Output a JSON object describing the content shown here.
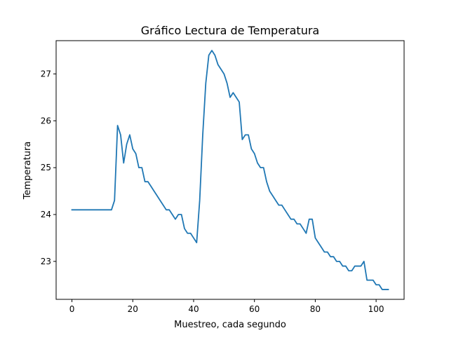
{
  "chart_data": {
    "type": "line",
    "title": "Gráfico Lectura de Temperatura",
    "xlabel": "Muestreo, cada segundo",
    "ylabel": "Temperatura",
    "xlim": [
      -5.2,
      109.2
    ],
    "ylim": [
      22.19,
      27.71
    ],
    "xticks": [
      0,
      20,
      40,
      60,
      80,
      100
    ],
    "yticks": [
      23,
      24,
      25,
      26,
      27
    ],
    "grid": false,
    "legend": "none",
    "series": [
      {
        "color": "#1f77b4",
        "x": [
          0,
          1,
          2,
          3,
          4,
          5,
          6,
          7,
          8,
          9,
          10,
          11,
          12,
          13,
          14,
          15,
          16,
          17,
          18,
          19,
          20,
          21,
          22,
          23,
          24,
          25,
          26,
          27,
          28,
          29,
          30,
          31,
          32,
          33,
          34,
          35,
          36,
          37,
          38,
          39,
          40,
          41,
          42,
          43,
          44,
          45,
          46,
          47,
          48,
          49,
          50,
          51,
          52,
          53,
          54,
          55,
          56,
          57,
          58,
          59,
          60,
          61,
          62,
          63,
          64,
          65,
          66,
          67,
          68,
          69,
          70,
          71,
          72,
          73,
          74,
          75,
          76,
          77,
          78,
          79,
          80,
          81,
          82,
          83,
          84,
          85,
          86,
          87,
          88,
          89,
          90,
          91,
          92,
          93,
          94,
          95,
          96,
          97,
          98,
          99,
          100,
          101,
          102,
          103,
          104
        ],
        "values": [
          24.1,
          24.1,
          24.1,
          24.1,
          24.1,
          24.1,
          24.1,
          24.1,
          24.1,
          24.1,
          24.1,
          24.1,
          24.1,
          24.1,
          24.3,
          25.9,
          25.7,
          25.1,
          25.5,
          25.7,
          25.4,
          25.3,
          25.0,
          25.0,
          24.7,
          24.7,
          24.6,
          24.5,
          24.4,
          24.3,
          24.2,
          24.1,
          24.1,
          24.0,
          23.9,
          24.0,
          24.0,
          23.7,
          23.6,
          23.6,
          23.5,
          23.4,
          24.3,
          25.7,
          26.8,
          27.4,
          27.5,
          27.4,
          27.2,
          27.1,
          27.0,
          26.8,
          26.5,
          26.6,
          26.5,
          26.4,
          25.6,
          25.7,
          25.7,
          25.4,
          25.3,
          25.1,
          25.0,
          25.0,
          24.7,
          24.5,
          24.4,
          24.3,
          24.2,
          24.2,
          24.1,
          24.0,
          23.9,
          23.9,
          23.8,
          23.8,
          23.7,
          23.6,
          23.9,
          23.9,
          23.5,
          23.4,
          23.3,
          23.2,
          23.2,
          23.1,
          23.1,
          23.0,
          23.0,
          22.9,
          22.9,
          22.8,
          22.8,
          22.9,
          22.9,
          22.9,
          23.0,
          22.6,
          22.6,
          22.6,
          22.5,
          22.5,
          22.4,
          22.4,
          22.4
        ]
      }
    ]
  }
}
